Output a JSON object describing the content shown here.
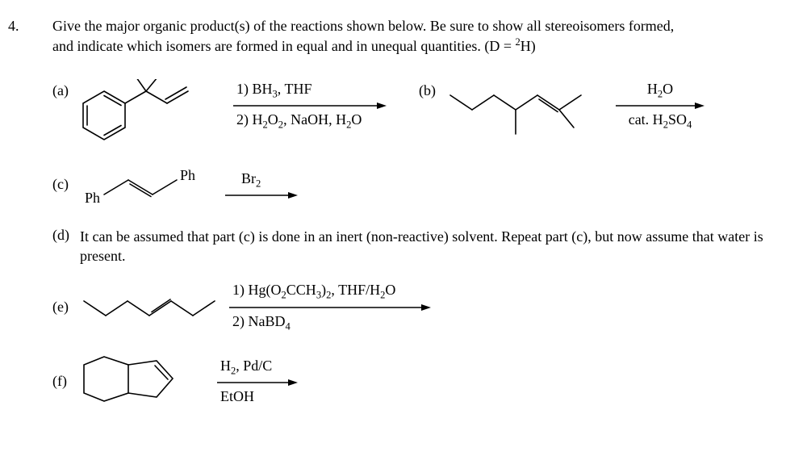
{
  "question_number": "4.",
  "prompt_line1": "Give the major organic product(s) of the reactions shown below.  Be sure to show all stereoisomers formed,",
  "prompt_line2": "and indicate which isomers are formed in equal and in unequal quantities. (D = ",
  "prompt_line2_sup": "2",
  "prompt_line2_end": "H)",
  "parts": {
    "a": {
      "label": "(a)",
      "reagent1_html": "1) BH<sub>3</sub>, THF",
      "reagent2_html": "2) H<sub>2</sub>O<sub>2</sub>, NaOH, H<sub>2</sub>O"
    },
    "b": {
      "label": "(b)",
      "reagent1_html": "H<sub>2</sub>O",
      "reagent2_html": "cat. H<sub>2</sub>SO<sub>4</sub>"
    },
    "c": {
      "label": "(c)",
      "ph1": "Ph",
      "ph2": "Ph",
      "reagent1_html": "Br<sub>2</sub>"
    },
    "d": {
      "label": "(d)",
      "text": "It can be assumed that part (c) is done in an inert (non-reactive) solvent. Repeat part (c), but now assume that water is present."
    },
    "e": {
      "label": "(e)",
      "reagent1_html": "1) Hg(O<sub>2</sub>CCH<sub>3</sub>)<sub>2</sub>, THF/H<sub>2</sub>O",
      "reagent2_html": "2) NaBD<sub>4</sub>"
    },
    "f": {
      "label": "(f)",
      "reagent1_html": "H<sub>2</sub>, Pd/C",
      "reagent2_html": "EtOH"
    }
  },
  "style": {
    "stroke": "#000000",
    "stroke_width": 1.6,
    "arrow_color": "#000000"
  }
}
